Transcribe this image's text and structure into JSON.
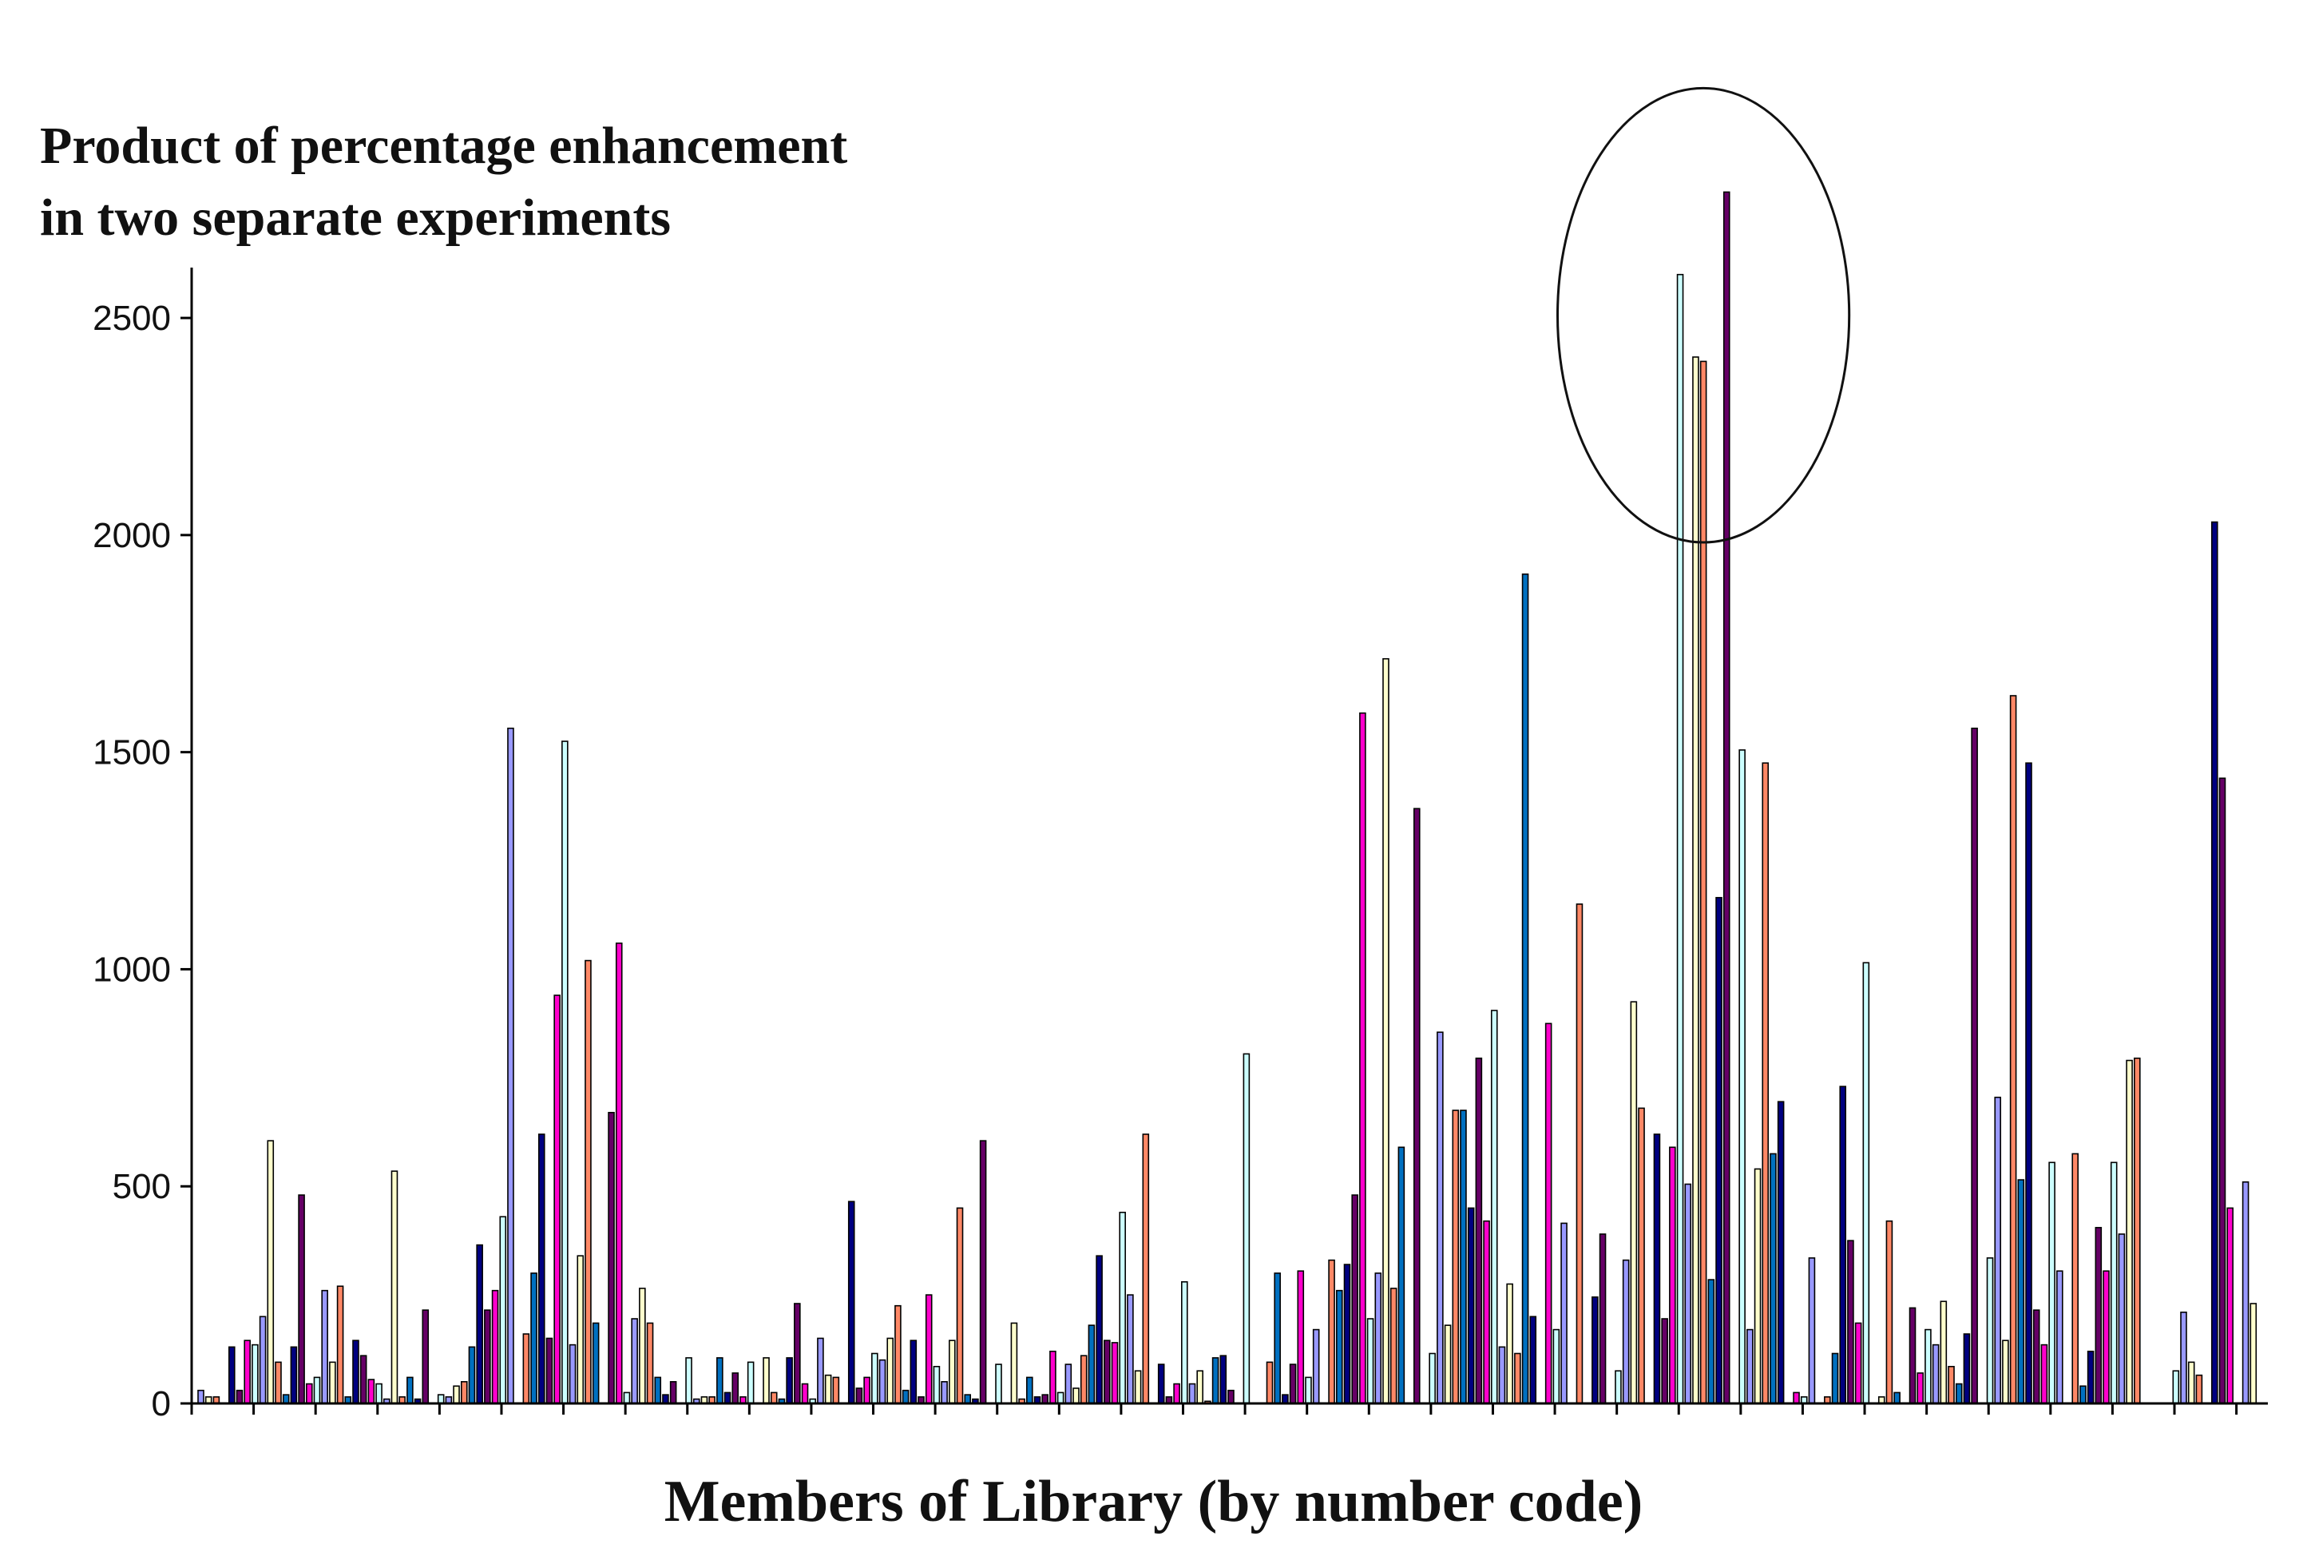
{
  "chart_data": {
    "type": "bar",
    "title_lines": [
      "Product of  percentage enhancement",
      "in two separate experiments"
    ],
    "xlabel": "Members of Library (by number code)",
    "ylabel": "",
    "ylim": [
      0,
      2800
    ],
    "yticks": [
      0,
      500,
      1000,
      1500,
      2000,
      2500
    ],
    "grid": false,
    "legend": "none",
    "group_size": 8,
    "series_colors": [
      "#9999ff",
      "#ffffcc",
      "#ff8866",
      "#0070c0",
      "#000080",
      "#660066",
      "#ff00cc",
      "#ccffff"
    ],
    "highlight": {
      "shape": "ellipse",
      "around_values": [
        2600,
        2410,
        2400,
        2790
      ]
    },
    "values": [
      30,
      15,
      15,
      0,
      130,
      30,
      145,
      135,
      200,
      605,
      95,
      20,
      130,
      480,
      45,
      60,
      260,
      95,
      270,
      15,
      145,
      110,
      55,
      45,
      10,
      535,
      15,
      60,
      10,
      215,
      0,
      20,
      15,
      40,
      50,
      130,
      365,
      215,
      260,
      430,
      1555,
      0,
      160,
      300,
      620,
      150,
      940,
      1525,
      135,
      340,
      1020,
      185,
      0,
      670,
      1060,
      25,
      195,
      265,
      185,
      60,
      20,
      50,
      0,
      105,
      10,
      15,
      15,
      105,
      25,
      70,
      15,
      95,
      0,
      105,
      25,
      10,
      105,
      230,
      45,
      10,
      150,
      65,
      60,
      0,
      465,
      35,
      60,
      115,
      100,
      150,
      225,
      30,
      145,
      15,
      250,
      85,
      50,
      145,
      450,
      20,
      10,
      605,
      0,
      90,
      0,
      185,
      10,
      60,
      15,
      20,
      120,
      25,
      90,
      35,
      110,
      180,
      340,
      145,
      140,
      440,
      250,
      75,
      620,
      0,
      90,
      15,
      45,
      280,
      45,
      75,
      5,
      105,
      110,
      30,
      0,
      805,
      0,
      0,
      95,
      300,
      20,
      90,
      305,
      60,
      170,
      0,
      330,
      260,
      320,
      480,
      1590,
      195,
      300,
      1715,
      265,
      590,
      0,
      1370,
      0,
      115,
      855,
      180,
      675,
      675,
      450,
      795,
      420,
      905,
      130,
      275,
      115,
      1910,
      200,
      0,
      875,
      170,
      415,
      0,
      1150,
      0,
      245,
      390,
      0,
      75,
      330,
      925,
      680,
      0,
      620,
      195,
      590,
      2600,
      505,
      2410,
      2400,
      285,
      1165,
      2790,
      0,
      1505,
      170,
      540,
      1475,
      575,
      695,
      0,
      25,
      15,
      335,
      0,
      15,
      115,
      730,
      375,
      185,
      1015,
      0,
      15,
      420,
      25,
      0,
      220,
      70,
      170,
      135,
      235,
      85,
      45,
      160,
      1555,
      0,
      335,
      705,
      145,
      1630,
      515,
      1475,
      215,
      135,
      555,
      305,
      0,
      575,
      40,
      120,
      405,
      305,
      555,
      390,
      790,
      795,
      0,
      0,
      0,
      0,
      75,
      210,
      95,
      65,
      0,
      2030,
      1440,
      450,
      0,
      510,
      230
    ]
  }
}
